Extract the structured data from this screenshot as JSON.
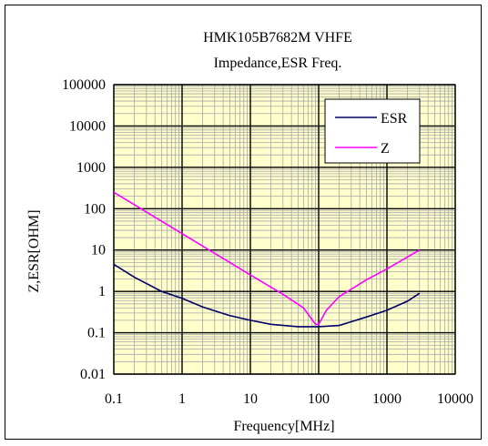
{
  "chart_data": {
    "type": "line",
    "title": "HMK105B7682M VHFE",
    "subtitle": "Impedance,ESR  Freq.",
    "xlabel": "Frequency[MHz]",
    "ylabel": "Z,ESR[OHM]",
    "xscale": "log",
    "yscale": "log",
    "xlim": [
      0.1,
      10000
    ],
    "ylim": [
      0.01,
      100000
    ],
    "xticks": [
      "0.1",
      "1",
      "10",
      "100",
      "1000",
      "10000"
    ],
    "yticks": [
      "100000",
      "10000",
      "1000",
      "100",
      "10",
      "1",
      "0.1",
      "0.01"
    ],
    "grid": true,
    "plot_background": "#ffffcc",
    "legend_position": "top-right",
    "series": [
      {
        "name": "ESR",
        "color": "#000066",
        "x": [
          0.1,
          0.2,
          0.5,
          1,
          2,
          5,
          10,
          20,
          50,
          100,
          200,
          500,
          1000,
          2000,
          3000
        ],
        "y": [
          4.5,
          2.2,
          1.0,
          0.68,
          0.42,
          0.26,
          0.2,
          0.16,
          0.14,
          0.14,
          0.15,
          0.24,
          0.35,
          0.58,
          0.9
        ]
      },
      {
        "name": "Z",
        "color": "#ff00ff",
        "x": [
          0.1,
          1,
          10,
          30,
          60,
          90,
          100,
          130,
          200,
          500,
          1000,
          3000
        ],
        "y": [
          250,
          25,
          2.5,
          0.85,
          0.4,
          0.16,
          0.16,
          0.35,
          0.75,
          1.9,
          3.5,
          10
        ]
      }
    ]
  }
}
